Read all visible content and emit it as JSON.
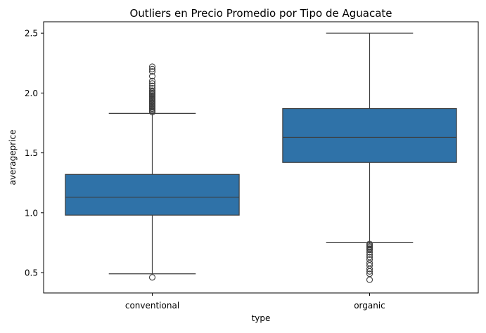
{
  "chart_data": {
    "type": "box",
    "title": "Outliers en Precio Promedio por Tipo de Aguacate",
    "xlabel": "type",
    "ylabel": "averageprice",
    "ylim": [
      0.33,
      2.595
    ],
    "yticks": [
      0.5,
      1.0,
      1.5,
      2.0,
      2.5
    ],
    "ytick_labels": [
      "0.5",
      "1.0",
      "1.5",
      "2.0",
      "2.5"
    ],
    "grid": false,
    "box_color": "#2f72a8",
    "line_color": "#3d3d3d",
    "categories": [
      "conventional",
      "organic"
    ],
    "boxes": [
      {
        "category": "conventional",
        "whisker_low": 0.49,
        "q1": 0.98,
        "median": 1.13,
        "q3": 1.32,
        "whisker_high": 1.83,
        "outliers": [
          0.46,
          1.84,
          1.85,
          1.86,
          1.87,
          1.88,
          1.89,
          1.9,
          1.91,
          1.92,
          1.93,
          1.94,
          1.95,
          1.96,
          1.97,
          1.98,
          1.99,
          2.0,
          2.01,
          2.02,
          2.04,
          2.06,
          2.08,
          2.1,
          2.14,
          2.18,
          2.2,
          2.22
        ]
      },
      {
        "category": "organic",
        "whisker_low": 0.75,
        "q1": 1.42,
        "median": 1.63,
        "q3": 1.87,
        "whisker_high": 2.5,
        "outliers": [
          0.44,
          0.49,
          0.51,
          0.53,
          0.56,
          0.58,
          0.61,
          0.63,
          0.65,
          0.67,
          0.69,
          0.7,
          0.71,
          0.72,
          0.73,
          0.74
        ]
      }
    ]
  }
}
